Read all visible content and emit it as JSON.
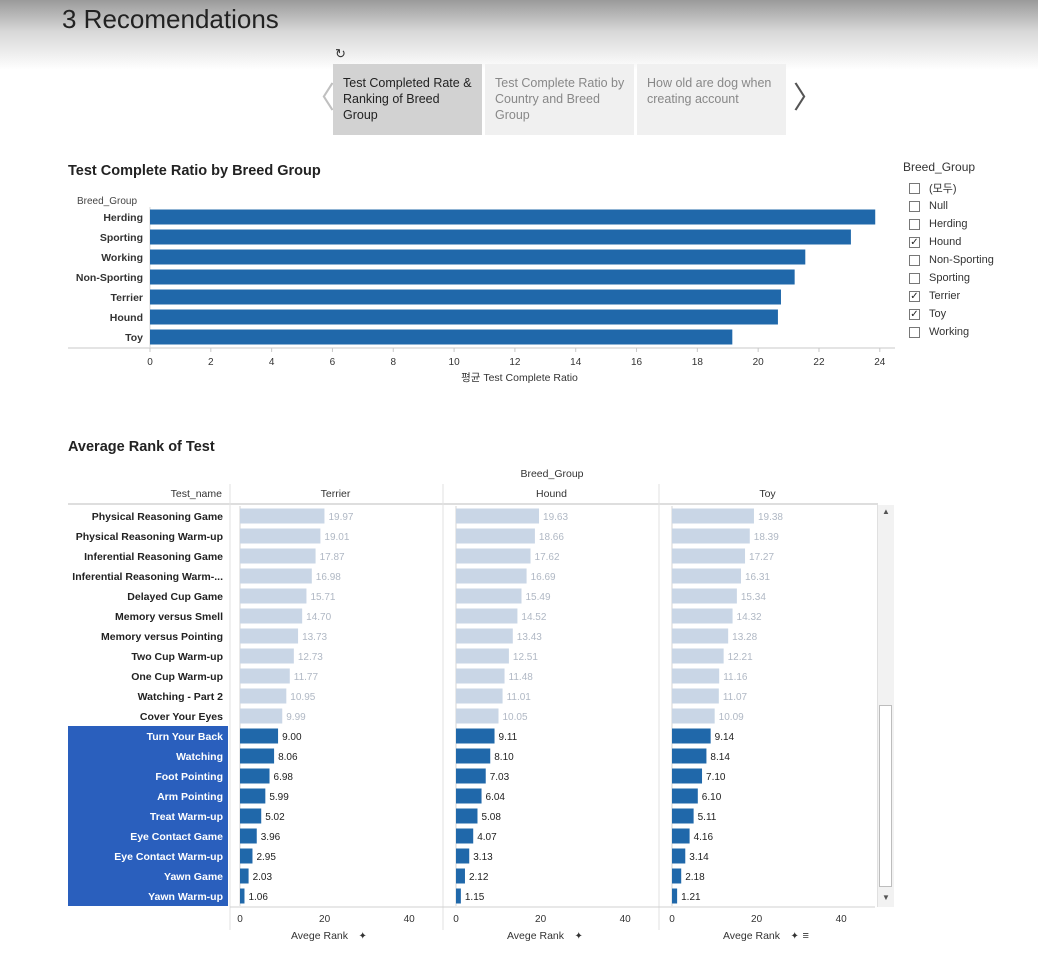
{
  "page": {
    "title": "3 Recomendations"
  },
  "story": {
    "reset_icon": "↻",
    "prev_arrow": "〈",
    "next_arrow": "〉",
    "tabs": [
      {
        "label": "Test Completed Rate & Ranking of Breed Group",
        "active": true
      },
      {
        "label": "Test Complete Ratio by Country and Breed Group",
        "active": false
      },
      {
        "label": "How old are dog when creating account",
        "active": false
      }
    ]
  },
  "breed_chart_title": "Test Complete Ratio by Breed Group",
  "rank_chart_title": "Average Rank of Test",
  "legend": {
    "title": "Breed_Group",
    "items": [
      {
        "label": "(모두)",
        "checked": false
      },
      {
        "label": "Null",
        "checked": false
      },
      {
        "label": "Herding",
        "checked": false
      },
      {
        "label": "Hound",
        "checked": true
      },
      {
        "label": "Non-Sporting",
        "checked": false
      },
      {
        "label": "Sporting",
        "checked": false
      },
      {
        "label": "Terrier",
        "checked": true
      },
      {
        "label": "Toy",
        "checked": true
      },
      {
        "label": "Working",
        "checked": false
      }
    ]
  },
  "chart_data": [
    {
      "type": "bar",
      "orientation": "horizontal",
      "title": "Test Complete Ratio by Breed Group",
      "category_header": "Breed_Group",
      "categories": [
        "Herding",
        "Sporting",
        "Working",
        "Non-Sporting",
        "Terrier",
        "Hound",
        "Toy"
      ],
      "values": [
        23.85,
        23.05,
        21.55,
        21.2,
        20.75,
        20.65,
        19.15
      ],
      "xlabel": "평균 Test Complete Ratio",
      "xticks": [
        0,
        2,
        4,
        6,
        8,
        10,
        12,
        14,
        16,
        18,
        20,
        22,
        24
      ],
      "xlim": [
        0,
        24.5
      ],
      "color": "#2068aa"
    },
    {
      "type": "bar",
      "orientation": "horizontal",
      "title": "Average Rank of Test",
      "row_header": "Test_name",
      "column_header": "Breed_Group",
      "categories": [
        "Physical Reasoning Game",
        "Physical Reasoning Warm-up",
        "Inferential Reasoning Game",
        "Inferential Reasoning Warm-...",
        "Delayed Cup Game",
        "Memory versus Smell",
        "Memory versus Pointing",
        "Two Cup Warm-up",
        "One Cup Warm-up",
        "Watching - Part 2",
        "Cover Your Eyes",
        "Turn Your Back",
        "Watching",
        "Foot Pointing",
        "Arm Pointing",
        "Treat Warm-up",
        "Eye Contact Game",
        "Eye Contact Warm-up",
        "Yawn Game",
        "Yawn Warm-up"
      ],
      "highlighted_from_index": 11,
      "series": [
        {
          "name": "Terrier",
          "labels": [
            "19.97",
            "19.01",
            "17.87",
            "16.98",
            "15.71",
            "14.70",
            "13.73",
            "12.73",
            "11.77",
            "10.95",
            "9.99",
            "9.00",
            "8.06",
            "6.98",
            "5.99",
            "5.02",
            "3.96",
            "2.95",
            "2.03",
            "1.06"
          ],
          "values": [
            19.97,
            19.01,
            17.87,
            16.98,
            15.71,
            14.7,
            13.73,
            12.73,
            11.77,
            10.95,
            9.99,
            9.0,
            8.06,
            6.98,
            5.99,
            5.02,
            3.96,
            2.95,
            2.03,
            1.06
          ]
        },
        {
          "name": "Hound",
          "labels": [
            "19.63",
            "18.66",
            "17.62",
            "16.69",
            "15.49",
            "14.52",
            "13.43",
            "12.51",
            "11.48",
            "11.01",
            "10.05",
            "9.11",
            "8.10",
            "7.03",
            "6.04",
            "5.08",
            "4.07",
            "3.13",
            "2.12",
            "1.15"
          ],
          "values": [
            19.63,
            18.66,
            17.62,
            16.69,
            15.49,
            14.52,
            13.43,
            12.51,
            11.48,
            11.01,
            10.05,
            9.11,
            8.1,
            7.03,
            6.04,
            5.08,
            4.07,
            3.13,
            2.12,
            1.15
          ]
        },
        {
          "name": "Toy",
          "labels": [
            "19.38",
            "18.39",
            "17.27",
            "16.31",
            "15.34",
            "14.32",
            "13.28",
            "12.21",
            "11.16",
            "11.07",
            "10.09",
            "9.14",
            "8.14",
            "7.10",
            "6.10",
            "5.11",
            "4.16",
            "3.14",
            "2.18",
            "1.21"
          ],
          "values": [
            19.38,
            18.39,
            17.27,
            16.31,
            15.34,
            14.32,
            13.28,
            12.21,
            11.16,
            11.07,
            10.09,
            9.14,
            8.14,
            7.1,
            6.1,
            5.11,
            4.16,
            3.14,
            2.18,
            1.21
          ]
        }
      ],
      "xlabel": "Avege Rank",
      "xticks": [
        0,
        20,
        40
      ],
      "xlim": [
        0,
        48
      ],
      "colors": {
        "highlight": "#2068aa",
        "faded": "#c9d6e6",
        "faded_label": "#b0b8c4"
      }
    }
  ]
}
